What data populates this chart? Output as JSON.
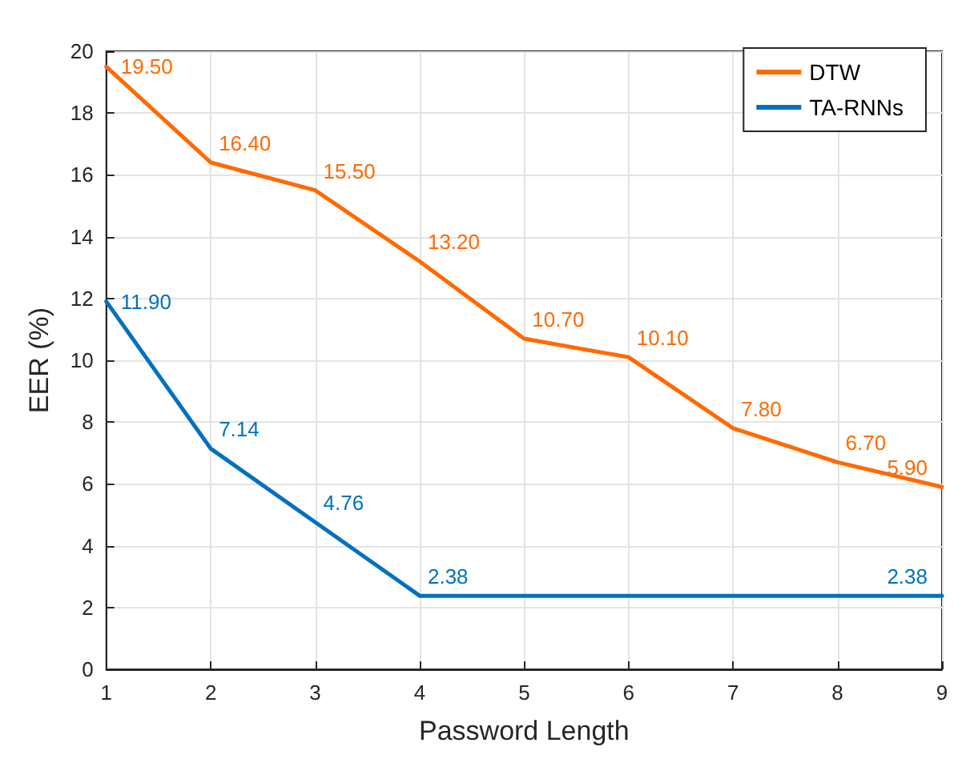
{
  "chart_data": {
    "type": "line",
    "xlabel": "Password Length",
    "ylabel": "EER (%)",
    "x": [
      1,
      2,
      3,
      4,
      5,
      6,
      7,
      8,
      9
    ],
    "series": [
      {
        "name": "DTW",
        "color": "#ff6a00",
        "values": [
          19.5,
          16.4,
          15.5,
          13.2,
          10.7,
          10.1,
          7.8,
          6.7,
          5.9
        ],
        "value_labels": [
          "19.50",
          "16.40",
          "15.50",
          "13.20",
          "10.70",
          "10.10",
          "7.80",
          "6.70",
          "5.90"
        ]
      },
      {
        "name": "TA-RNNs",
        "color": "#0072bd",
        "values": [
          11.9,
          7.14,
          4.76,
          2.38,
          2.38,
          2.38,
          2.38,
          2.38,
          2.38
        ],
        "value_labels": [
          "11.90",
          "7.14",
          "4.76",
          "2.38",
          null,
          null,
          null,
          null,
          "2.38"
        ]
      }
    ],
    "xlim": [
      1,
      9
    ],
    "xticks": [
      1,
      2,
      3,
      4,
      5,
      6,
      7,
      8,
      9
    ],
    "ylim": [
      0,
      20
    ],
    "yticks": [
      0,
      2,
      4,
      6,
      8,
      10,
      12,
      14,
      16,
      18,
      20
    ],
    "grid": true,
    "legend": "top right",
    "marker": "none",
    "line_style": "solid"
  }
}
